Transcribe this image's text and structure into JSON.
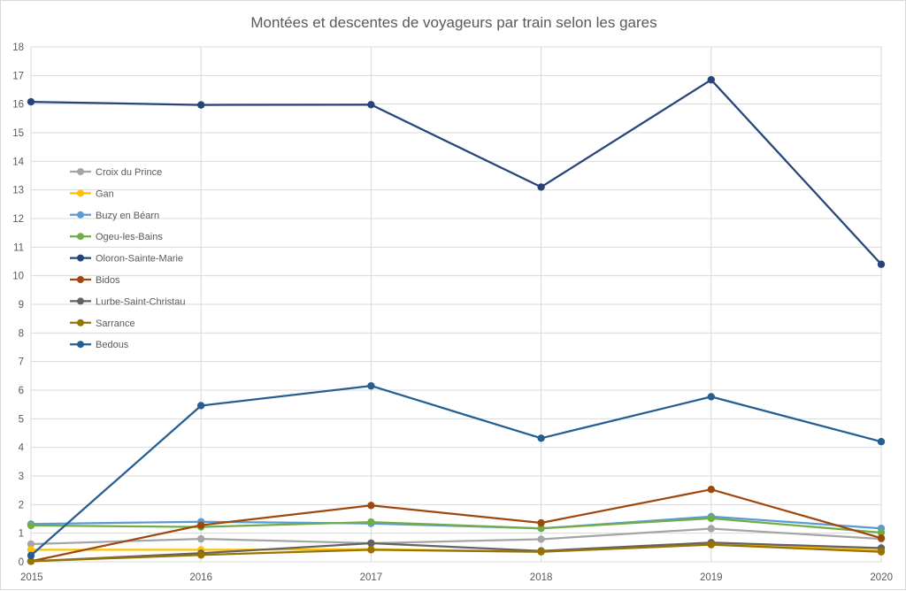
{
  "chart_data": {
    "type": "line",
    "title": "Montées et descentes de voyageurs par train selon les gares",
    "xlabel": "",
    "ylabel": "",
    "x": [
      "2015",
      "2016",
      "2017",
      "2018",
      "2019",
      "2020"
    ],
    "ylim": [
      0,
      18
    ],
    "yticks": [
      "0",
      "1",
      "2",
      "3",
      "4",
      "5",
      "6",
      "7",
      "8",
      "9",
      "10",
      "11",
      "12",
      "13",
      "14",
      "15",
      "16",
      "17",
      "18"
    ],
    "grid": true,
    "legend_position": "left",
    "series": [
      {
        "name": "Croix du Prince",
        "color": "#a5a5a5",
        "values": [
          0.62,
          0.8,
          0.65,
          0.79,
          1.16,
          0.8
        ]
      },
      {
        "name": "Gan",
        "color": "#ffc000",
        "values": [
          0.42,
          0.42,
          0.44,
          0.36,
          0.64,
          0.4
        ]
      },
      {
        "name": "Buzy en Béarn",
        "color": "#5b9bd5",
        "values": [
          1.32,
          1.4,
          1.34,
          1.17,
          1.58,
          1.17
        ]
      },
      {
        "name": "Ogeu-les-Bains",
        "color": "#70ad47",
        "values": [
          1.27,
          1.22,
          1.39,
          1.17,
          1.52,
          1.02
        ]
      },
      {
        "name": "Oloron-Sainte-Marie",
        "color": "#264478",
        "values": [
          16.08,
          15.97,
          15.98,
          13.1,
          16.85,
          10.4
        ]
      },
      {
        "name": "Bidos",
        "color": "#9e480e",
        "values": [
          0.02,
          1.28,
          1.97,
          1.36,
          2.53,
          0.83
        ]
      },
      {
        "name": "Lurbe-Saint-Christau",
        "color": "#636363",
        "values": [
          0.02,
          0.3,
          0.65,
          0.38,
          0.67,
          0.48
        ]
      },
      {
        "name": "Sarrance",
        "color": "#997300",
        "values": [
          0.02,
          0.24,
          0.42,
          0.35,
          0.6,
          0.35
        ]
      },
      {
        "name": "Bedous",
        "color": "#255e91",
        "values": [
          0.22,
          5.46,
          6.15,
          4.32,
          5.77,
          4.2
        ]
      }
    ]
  }
}
